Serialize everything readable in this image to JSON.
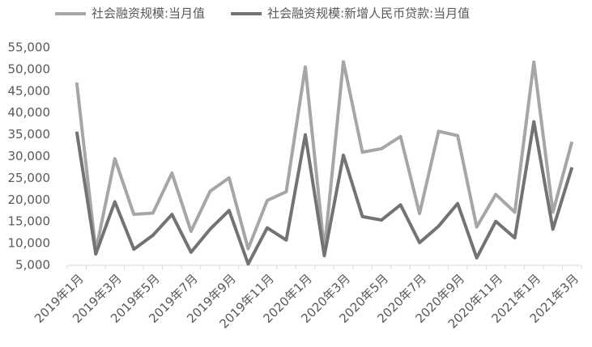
{
  "chart_data": {
    "type": "line",
    "categories": [
      "2019年1月",
      null,
      "2019年3月",
      null,
      "2019年5月",
      null,
      "2019年7月",
      null,
      "2019年9月",
      null,
      "2019年11月",
      null,
      "2020年1月",
      null,
      "2020年3月",
      null,
      "2020年5月",
      null,
      "2020年7月",
      null,
      "2020年9月",
      null,
      "2020年11月",
      null,
      "2021年1月",
      null,
      "2021年3月"
    ],
    "series": [
      {
        "name": "社会融资规模:当月值",
        "color": "#a6a6a6",
        "values": [
          47000,
          8300,
          29500,
          16700,
          17000,
          26200,
          12800,
          22000,
          25100,
          8800,
          19900,
          21900,
          50600,
          8500,
          51800,
          31000,
          31800,
          34600,
          16900,
          35800,
          34800,
          13800,
          21300,
          17200,
          51700,
          17200,
          33400
        ]
      },
      {
        "name": "社会融资规模:新增人民币贷款:当月值",
        "color": "#737373",
        "values": [
          35700,
          7600,
          19600,
          8700,
          11900,
          16700,
          8000,
          13300,
          17600,
          5300,
          13600,
          10800,
          35000,
          7200,
          30300,
          16200,
          15400,
          18900,
          10200,
          14000,
          19200,
          6700,
          15100,
          11300,
          38000,
          13300,
          27500
        ]
      }
    ],
    "ylim": [
      5000,
      55000
    ],
    "yticks": [
      {
        "value": 5000,
        "label": "5,000"
      },
      {
        "value": 10000,
        "label": "10,000"
      },
      {
        "value": 15000,
        "label": "15,000"
      },
      {
        "value": 20000,
        "label": "20,000"
      },
      {
        "value": 25000,
        "label": "25,000"
      },
      {
        "value": 30000,
        "label": "30,000"
      },
      {
        "value": 35000,
        "label": "35,000"
      },
      {
        "value": 40000,
        "label": "40,000"
      },
      {
        "value": 45000,
        "label": "45,000"
      },
      {
        "value": 50000,
        "label": "50,000"
      },
      {
        "value": 55000,
        "label": "55,000"
      }
    ],
    "legend": "top"
  }
}
